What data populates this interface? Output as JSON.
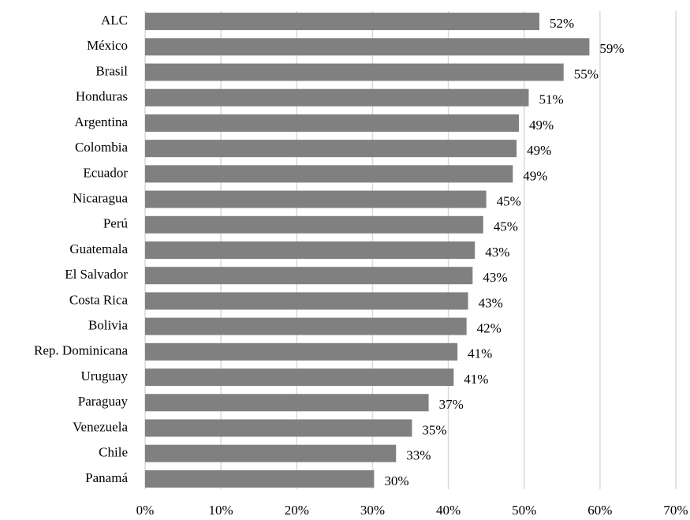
{
  "chart_data": {
    "type": "hbar",
    "categories": [
      "ALC",
      "México",
      "Brasil",
      "Honduras",
      "Argentina",
      "Colombia",
      "Ecuador",
      "Nicaragua",
      "Perú",
      "Guatemala",
      "El Salvador",
      "Costa Rica",
      "Bolivia",
      "Rep. Dominicana",
      "Uruguay",
      "Paraguay",
      "Venezuela",
      "Chile",
      "Panamá"
    ],
    "values": [
      52.0,
      58.6,
      55.2,
      50.6,
      49.3,
      49.0,
      48.5,
      45.0,
      44.6,
      43.5,
      43.2,
      42.6,
      42.4,
      41.2,
      40.7,
      37.4,
      35.2,
      33.1,
      30.2
    ],
    "value_labels": [
      "52%",
      "59%",
      "55%",
      "51%",
      "49%",
      "49%",
      "49%",
      "45%",
      "45%",
      "43%",
      "43%",
      "43%",
      "42%",
      "41%",
      "41%",
      "37%",
      "35%",
      "33%",
      "30%"
    ],
    "color": "#808080",
    "xlim": [
      0,
      70
    ],
    "xticks": [
      {
        "value": 0,
        "label": "0%"
      },
      {
        "value": 10,
        "label": "10%"
      },
      {
        "value": 20,
        "label": "20%"
      },
      {
        "value": 30,
        "label": "30%"
      },
      {
        "value": 40,
        "label": "40%"
      },
      {
        "value": 50,
        "label": "50%"
      },
      {
        "value": 60,
        "label": "60%"
      },
      {
        "value": 70,
        "label": "70%"
      }
    ],
    "grid": true
  }
}
